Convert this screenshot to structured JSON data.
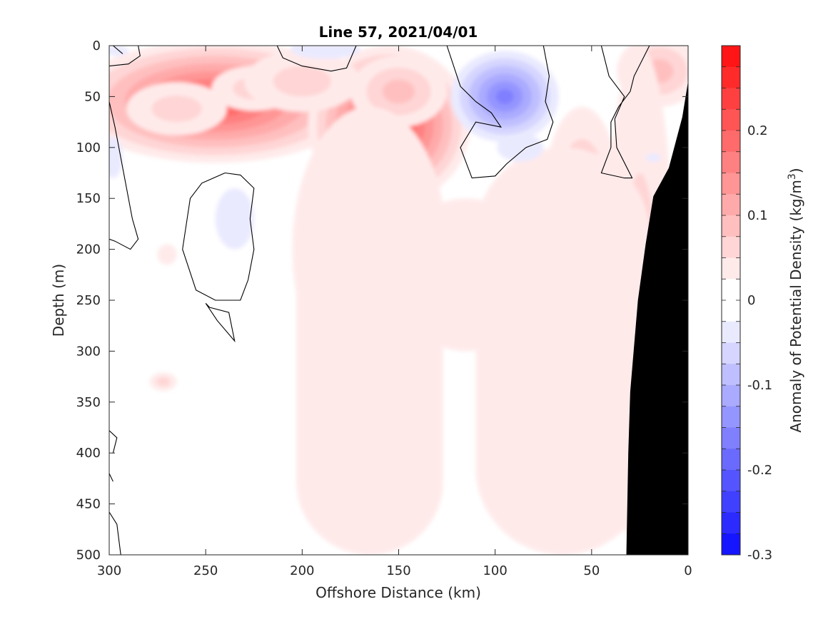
{
  "chart_data": {
    "type": "heatmap",
    "subtype": "filled-contour",
    "title": "Line 57, 2021/04/01",
    "xlabel": "Offshore Distance (km)",
    "ylabel": "Depth (m)",
    "colorbar_label": "Anomaly of Potential Density (kg/m",
    "colorbar_label_sup": "3",
    "colorbar_label_close": ")",
    "xlim": [
      300,
      0
    ],
    "x_reversed": true,
    "ylim": [
      500,
      0
    ],
    "y_reversed": true,
    "x_ticks": [
      300,
      250,
      200,
      150,
      100,
      50,
      0
    ],
    "y_ticks": [
      0,
      50,
      100,
      150,
      200,
      250,
      300,
      350,
      400,
      450,
      500
    ],
    "x_tick_labels": [
      "300",
      "250",
      "200",
      "150",
      "100",
      "50",
      "0"
    ],
    "y_tick_labels": [
      "0",
      "50",
      "100",
      "150",
      "200",
      "250",
      "300",
      "350",
      "400",
      "450",
      "500"
    ],
    "color_scale": {
      "min": -0.3,
      "max": 0.3,
      "step": 0.025,
      "negative_color": "#0000ff",
      "positive_color": "#ff0000",
      "zero_color": "#ffffff"
    },
    "colorbar_ticks": [
      0.2,
      0.1,
      0,
      -0.1,
      -0.2,
      -0.3
    ],
    "colorbar_tick_labels": [
      "0.2",
      "0.1",
      "0",
      "-0.1",
      "-0.2",
      "-0.3"
    ],
    "contour_level": 0,
    "bathymetry_color": "#000000",
    "bathymetry": [
      [
        32,
        500
      ],
      [
        31,
        400
      ],
      [
        30,
        340
      ],
      [
        26,
        250
      ],
      [
        22,
        195
      ],
      [
        18,
        148
      ],
      [
        10,
        120
      ],
      [
        3,
        70
      ],
      [
        0,
        35
      ]
    ],
    "features": [
      {
        "name": "positive",
        "kind": "blob",
        "x": 245,
        "y": 55,
        "rx": 75,
        "ry": 60,
        "value": 0.21
      },
      {
        "name": "positive",
        "kind": "blob",
        "x": 265,
        "y": 62,
        "rx": 26,
        "ry": 26,
        "value": 0.06
      },
      {
        "name": "positive",
        "kind": "blob",
        "x": 225,
        "y": 42,
        "rx": 22,
        "ry": 22,
        "value": 0.05
      },
      {
        "name": "positive",
        "kind": "blob",
        "x": 155,
        "y": 78,
        "rx": 42,
        "ry": 78,
        "value": 0.24
      },
      {
        "name": "positive",
        "kind": "blob",
        "x": 150,
        "y": 45,
        "rx": 25,
        "ry": 35,
        "value": 0.08
      },
      {
        "name": "positive",
        "kind": "blob",
        "x": 165,
        "y": 200,
        "rx": 40,
        "ry": 140,
        "value": 0.08
      },
      {
        "name": "positive",
        "kind": "blob",
        "x": 200,
        "y": 35,
        "rx": 30,
        "ry": 30,
        "value": 0.05
      },
      {
        "name": "positive",
        "kind": "blob",
        "x": 55,
        "y": 155,
        "rx": 20,
        "ry": 95,
        "value": 0.08
      },
      {
        "name": "positive",
        "kind": "blob",
        "x": 15,
        "y": 25,
        "rx": 22,
        "ry": 35,
        "value": 0.09
      },
      {
        "name": "positive",
        "kind": "blob",
        "x": 25,
        "y": 250,
        "rx": 18,
        "ry": 250,
        "value": 0.06
      },
      {
        "name": "positive",
        "kind": "blob",
        "x": 272,
        "y": 330,
        "rx": 7,
        "ry": 9,
        "value": 0.05
      },
      {
        "name": "positive",
        "kind": "blob",
        "x": 270,
        "y": 205,
        "rx": 5,
        "ry": 10,
        "value": 0.04
      },
      {
        "name": "positive",
        "kind": "band",
        "x": 165,
        "halfwidth": 38,
        "y0": 100,
        "y1": 500,
        "value": 0.04
      },
      {
        "name": "positive",
        "kind": "band",
        "x": 65,
        "halfwidth": 45,
        "y0": 100,
        "y1": 500,
        "value": 0.035
      },
      {
        "name": "positive",
        "kind": "band",
        "x": 115,
        "halfwidth": 35,
        "y0": 150,
        "y1": 300,
        "value": 0.03
      },
      {
        "name": "negative",
        "kind": "blob",
        "x": 95,
        "y": 50,
        "rx": 28,
        "ry": 45,
        "value": -0.17
      },
      {
        "name": "negative",
        "kind": "blob",
        "x": 87,
        "y": 100,
        "rx": 12,
        "ry": 14,
        "value": -0.04
      },
      {
        "name": "negative",
        "kind": "blob",
        "x": 235,
        "y": 170,
        "rx": 10,
        "ry": 30,
        "value": -0.04
      },
      {
        "name": "negative",
        "kind": "blob",
        "x": 298,
        "y": 110,
        "rx": 5,
        "ry": 20,
        "value": -0.04
      },
      {
        "name": "negative",
        "kind": "blob",
        "x": 188,
        "y": 3,
        "rx": 18,
        "ry": 10,
        "value": -0.035
      },
      {
        "name": "negative",
        "kind": "blob",
        "x": 296,
        "y": 5,
        "rx": 6,
        "ry": 5,
        "value": -0.03
      },
      {
        "name": "negative",
        "kind": "blob",
        "x": 18,
        "y": 110,
        "rx": 4,
        "ry": 4,
        "value": -0.03
      }
    ],
    "zero_contours": [
      [
        [
          300,
          55
        ],
        [
          297,
          80
        ],
        [
          292,
          130
        ],
        [
          288,
          170
        ],
        [
          285,
          190
        ],
        [
          289,
          200
        ],
        [
          297,
          192
        ],
        [
          300,
          190
        ]
      ],
      [
        [
          300,
          20
        ],
        [
          290,
          18
        ],
        [
          284,
          10
        ],
        [
          285,
          0
        ]
      ],
      [
        [
          298,
          0
        ],
        [
          293,
          8
        ]
      ],
      [
        [
          240,
          125
        ],
        [
          252,
          135
        ],
        [
          258,
          150
        ],
        [
          262,
          200
        ],
        [
          255,
          240
        ],
        [
          245,
          250
        ],
        [
          232,
          250
        ],
        [
          228,
          230
        ],
        [
          225,
          200
        ],
        [
          227,
          170
        ],
        [
          225,
          140
        ],
        [
          232,
          127
        ],
        [
          240,
          125
        ]
      ],
      [
        [
          250,
          253
        ],
        [
          244,
          270
        ],
        [
          235,
          290
        ],
        [
          238,
          262
        ],
        [
          248,
          257
        ],
        [
          250,
          253
        ]
      ],
      [
        [
          213,
          0
        ],
        [
          210,
          12
        ],
        [
          200,
          20
        ],
        [
          185,
          25
        ],
        [
          177,
          22
        ],
        [
          172,
          0
        ]
      ],
      [
        [
          125,
          0
        ],
        [
          118,
          40
        ],
        [
          110,
          55
        ],
        [
          102,
          66
        ],
        [
          97,
          80
        ],
        [
          110,
          75
        ],
        [
          118,
          100
        ],
        [
          112,
          130
        ],
        [
          100,
          128
        ],
        [
          94,
          116
        ],
        [
          84,
          100
        ],
        [
          73,
          92
        ],
        [
          70,
          75
        ],
        [
          74,
          55
        ],
        [
          72,
          30
        ],
        [
          75,
          0
        ]
      ],
      [
        [
          45,
          0
        ],
        [
          41,
          30
        ],
        [
          33,
          50
        ],
        [
          38,
          72
        ],
        [
          37,
          100
        ],
        [
          29,
          130
        ],
        [
          33,
          130
        ],
        [
          45,
          125
        ],
        [
          40,
          100
        ],
        [
          40,
          75
        ],
        [
          36,
          60
        ],
        [
          30,
          45
        ],
        [
          28,
          30
        ],
        [
          20,
          0
        ]
      ],
      [
        [
          300,
          378
        ],
        [
          296,
          385
        ],
        [
          298,
          400
        ]
      ],
      [
        [
          300,
          458
        ],
        [
          296,
          470
        ],
        [
          294,
          500
        ]
      ],
      [
        [
          300,
          420
        ],
        [
          298,
          428
        ]
      ]
    ]
  }
}
